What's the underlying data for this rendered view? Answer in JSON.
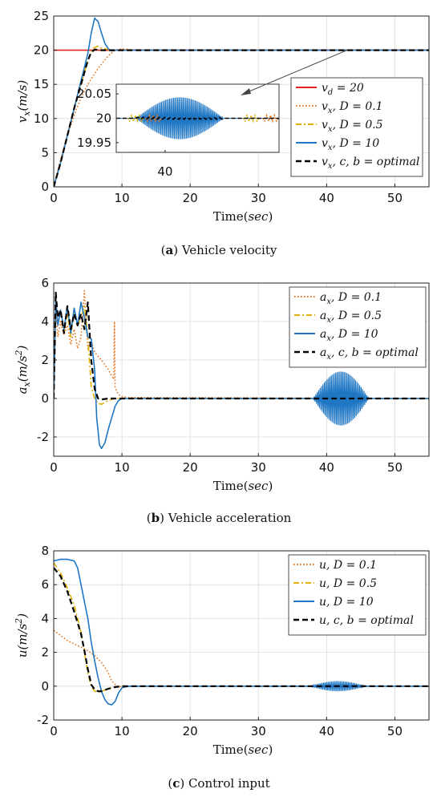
{
  "colors": {
    "red": "#e6201d",
    "orange": "#e6751d",
    "yellow": "#e0b000",
    "blue": "#1f77c4",
    "black": "#000000"
  },
  "chart_data": [
    {
      "id": "a",
      "type": "line",
      "caption_letter": "a",
      "caption_text": " Vehicle velocity",
      "ylabel_var": "v",
      "ylabel_sub": "x",
      "ylabel_unit": "(m/s)",
      "xlabel_main": "Time",
      "xlabel_unit": "sec",
      "xlim": [
        0,
        55
      ],
      "ylim": [
        0,
        25
      ],
      "xticks": [
        0,
        10,
        20,
        30,
        40,
        50
      ],
      "xtick_labels": [
        "0",
        "10",
        "20",
        "30",
        "40",
        "50"
      ],
      "yticks": [
        0,
        5,
        10,
        15,
        20,
        25
      ],
      "ytick_labels": [
        "0",
        "5",
        "10",
        "15",
        "20",
        "25"
      ],
      "grid": true,
      "legend_position": "inside-right",
      "series": [
        {
          "name": "v_d = 20",
          "legend": [
            "v",
            "d",
            " = 20"
          ],
          "color": "red",
          "dash": "solid",
          "x": [
            0,
            5,
            55
          ],
          "y": [
            20,
            20,
            20
          ]
        },
        {
          "name": "v_x, D = 0.1",
          "legend": [
            "v",
            "x",
            ", D = 0.1"
          ],
          "color": "orange",
          "dash": "dot",
          "x": [
            0,
            1,
            2,
            3,
            4,
            5,
            6,
            7,
            8,
            9,
            10,
            11,
            12,
            55
          ],
          "y": [
            0,
            4,
            7.5,
            10.5,
            13,
            15,
            16.6,
            18,
            19.2,
            20,
            20.2,
            20.1,
            20,
            20
          ]
        },
        {
          "name": "v_x, D = 0.5",
          "legend": [
            "v",
            "x",
            ", D = 0.5"
          ],
          "color": "yellow",
          "dash": "dashdot",
          "x": [
            0,
            1,
            2,
            3,
            4,
            5,
            5.8,
            6.5,
            7,
            8,
            9,
            55
          ],
          "y": [
            0,
            3.5,
            7.5,
            11.5,
            15,
            18.5,
            20.3,
            20.6,
            20.3,
            20.1,
            20,
            20
          ]
        },
        {
          "name": "v_x, D = 10",
          "legend": [
            "v",
            "x",
            ", D = 10"
          ],
          "color": "blue",
          "dash": "solid",
          "x": [
            0,
            1,
            2,
            3,
            4,
            5,
            5.5,
            6,
            6.5,
            7,
            7.5,
            8,
            8.5,
            9,
            10,
            55
          ],
          "y": [
            0,
            3.5,
            7.5,
            11.5,
            15.5,
            19.5,
            22.5,
            24.7,
            24.2,
            22.5,
            21,
            20.2,
            19.9,
            20,
            20,
            20
          ]
        },
        {
          "name": "v_x, c, b = optimal",
          "legend": [
            "v",
            "x",
            ", c, b = optimal"
          ],
          "color": "black",
          "dash": "dash",
          "x": [
            0,
            1,
            2,
            3,
            4,
            5,
            5.5,
            6,
            7,
            8,
            55
          ],
          "y": [
            0,
            3.5,
            7.5,
            11.5,
            15,
            18.5,
            19.7,
            20.1,
            20,
            20,
            20
          ]
        }
      ],
      "inset": {
        "xlim": [
          37,
          47
        ],
        "ylim": [
          19.93,
          20.07
        ],
        "yticks": [
          19.95,
          20,
          20.05
        ],
        "ytick_labels": [
          "19.95",
          "20",
          "20.05"
        ],
        "xticks": [
          40
        ],
        "xtick_labels": [
          "40"
        ],
        "osc_start": 38.2,
        "osc_end": 43.6,
        "osc_peak": 0.043,
        "small_dev": 0.006
      }
    },
    {
      "id": "b",
      "type": "line",
      "caption_letter": "b",
      "caption_text": " Vehicle acceleration",
      "ylabel_var": "a",
      "ylabel_sub": "x",
      "ylabel_unit": "(m/s",
      "ylabel_sup": "2",
      "ylabel_tail": ")",
      "xlabel_main": "Time",
      "xlabel_unit": "sec",
      "xlim": [
        0,
        55
      ],
      "ylim": [
        -3,
        6
      ],
      "xticks": [
        0,
        10,
        20,
        30,
        40,
        50
      ],
      "xtick_labels": [
        "0",
        "10",
        "20",
        "30",
        "40",
        "50"
      ],
      "yticks": [
        -2,
        0,
        2,
        4,
        6
      ],
      "ytick_labels": [
        "-2",
        "0",
        "2",
        "4",
        "6"
      ],
      "grid": true,
      "legend_position": "top-right",
      "series": [
        {
          "name": "a_x, D = 0.1",
          "legend": [
            "a",
            "x",
            ", D = 0.1"
          ],
          "color": "orange",
          "dash": "dot",
          "x": [
            0,
            0.3,
            0.6,
            1,
            1.5,
            2,
            2.5,
            3,
            3.5,
            4,
            4.5,
            5,
            5.5,
            6,
            7,
            8,
            8.8,
            8.9,
            9,
            9.2,
            9.5,
            10,
            11,
            55
          ],
          "y": [
            0,
            4.8,
            3.2,
            4,
            3.3,
            3.8,
            2.8,
            3.6,
            2.6,
            3.2,
            5.6,
            2.6,
            3,
            2.4,
            2,
            1.5,
            1,
            4,
            0.6,
            0.4,
            0.2,
            0.1,
            0.05,
            0
          ]
        },
        {
          "name": "a_x, D = 0.5",
          "legend": [
            "a",
            "x",
            ", D = 0.5"
          ],
          "color": "yellow",
          "dash": "dashdot",
          "x": [
            0,
            0.3,
            0.6,
            1,
            1.5,
            2,
            2.5,
            3,
            3.5,
            4,
            4.5,
            5,
            5.5,
            6,
            6.5,
            7,
            7.5,
            8,
            9,
            10,
            55
          ],
          "y": [
            0,
            5,
            3.8,
            4.6,
            3.5,
            4.4,
            3.2,
            4.6,
            3.8,
            4.2,
            4.8,
            3.2,
            0.6,
            0,
            -0.25,
            -0.3,
            -0.2,
            -0.1,
            0,
            0,
            0
          ]
        },
        {
          "name": "a_x, D = 10",
          "legend": [
            "a",
            "x",
            ", D = 10"
          ],
          "color": "blue",
          "dash": "solid",
          "x": [
            0,
            0.3,
            0.6,
            1,
            1.5,
            2,
            2.5,
            3,
            3.5,
            4,
            4.5,
            5,
            5.5,
            6,
            6.3,
            6.7,
            7,
            7.5,
            8,
            8.5,
            9,
            9.5,
            10,
            55
          ],
          "y": [
            0,
            5.2,
            3.8,
            4.6,
            3.6,
            4.8,
            3.4,
            4.7,
            3.8,
            5,
            4.2,
            3.2,
            3.1,
            1.5,
            -1,
            -2.4,
            -2.6,
            -2.3,
            -1.6,
            -1,
            -0.4,
            -0.1,
            0,
            0
          ]
        },
        {
          "name": "a_x, c, b = optimal",
          "legend": [
            "a",
            "x",
            ", c, b = optimal"
          ],
          "color": "black",
          "dash": "dash",
          "x": [
            0,
            0.3,
            0.6,
            1,
            1.5,
            2,
            2.5,
            3,
            3.5,
            4,
            4.5,
            5,
            5.5,
            6,
            6.5,
            7,
            8,
            55
          ],
          "y": [
            0,
            5.5,
            4.2,
            4.6,
            3.4,
            4.8,
            3.6,
            4.4,
            3.8,
            4.4,
            3.6,
            5,
            2,
            0.5,
            0,
            -0.05,
            0,
            0
          ]
        }
      ],
      "osc": {
        "series": 2,
        "start": 38,
        "end": 46.2,
        "peak": 1.4,
        "freq": 2.4
      }
    },
    {
      "id": "c",
      "type": "line",
      "caption_letter": "c",
      "caption_text": " Control input",
      "ylabel_var": "u",
      "ylabel_sub": "",
      "ylabel_unit": "(m/s",
      "ylabel_sup": "2",
      "ylabel_tail": ")",
      "xlabel_main": "Time",
      "xlabel_unit": "sec",
      "xlim": [
        0,
        55
      ],
      "ylim": [
        -2,
        8
      ],
      "xticks": [
        0,
        10,
        20,
        30,
        40,
        50
      ],
      "xtick_labels": [
        "0",
        "10",
        "20",
        "30",
        "40",
        "50"
      ],
      "yticks": [
        -2,
        0,
        2,
        4,
        6,
        8
      ],
      "ytick_labels": [
        "-2",
        "0",
        "2",
        "4",
        "6",
        "8"
      ],
      "grid": true,
      "legend_position": "top-right",
      "series": [
        {
          "name": "u, D = 0.1",
          "legend": [
            "u",
            "",
            ", D = 0.1"
          ],
          "color": "orange",
          "dash": "dot",
          "x": [
            0,
            1,
            2,
            3,
            4,
            5,
            6,
            7,
            8,
            8.5,
            9,
            9.5,
            10,
            11,
            55
          ],
          "y": [
            3.3,
            3,
            2.7,
            2.5,
            2.3,
            2.1,
            1.8,
            1.4,
            0.8,
            0.3,
            0.1,
            -0.05,
            0,
            0,
            0
          ]
        },
        {
          "name": "u, D = 0.5",
          "legend": [
            "u",
            "",
            ", D = 0.5"
          ],
          "color": "yellow",
          "dash": "dashdot",
          "x": [
            0,
            1,
            2,
            3,
            4,
            4.5,
            5,
            5.5,
            6,
            6.5,
            7,
            8,
            9,
            10,
            55
          ],
          "y": [
            7.3,
            6.7,
            5.8,
            4.8,
            3.2,
            2,
            0.8,
            0,
            -0.3,
            -0.35,
            -0.3,
            -0.15,
            -0.05,
            0,
            0
          ]
        },
        {
          "name": "u, D = 10",
          "legend": [
            "u",
            "",
            ", D = 10"
          ],
          "color": "blue",
          "dash": "solid",
          "x": [
            0,
            1,
            2,
            3,
            3.5,
            4,
            4.5,
            5,
            5.5,
            6,
            6.5,
            7,
            7.5,
            8,
            8.5,
            9,
            9.5,
            10,
            11,
            55
          ],
          "y": [
            7.4,
            7.5,
            7.5,
            7.4,
            7,
            6,
            5,
            4,
            2.6,
            1.5,
            0.5,
            -0.3,
            -0.8,
            -1.05,
            -1.1,
            -0.9,
            -0.4,
            -0.1,
            0,
            0
          ]
        },
        {
          "name": "u, c, b = optimal",
          "legend": [
            "u",
            "",
            ", c, b = optimal"
          ],
          "color": "black",
          "dash": "dash",
          "x": [
            0,
            1,
            2,
            3,
            4,
            4.5,
            5,
            5.5,
            6,
            6.5,
            7,
            8,
            9,
            10,
            55
          ],
          "y": [
            7,
            6.5,
            5.6,
            4.4,
            3.1,
            2.1,
            1,
            0.1,
            -0.2,
            -0.3,
            -0.3,
            -0.15,
            -0.05,
            0,
            0
          ]
        }
      ],
      "osc": {
        "series": 2,
        "start": 37.5,
        "end": 45.8,
        "peak": 0.3,
        "freq": 2.2
      }
    }
  ]
}
